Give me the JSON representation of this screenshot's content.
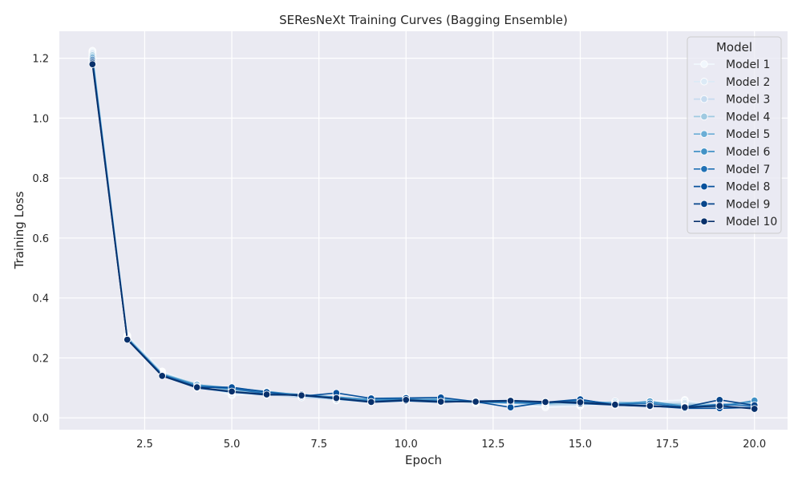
{
  "chart_data": {
    "type": "line",
    "title": "SEResNeXt Training Curves (Bagging Ensemble)",
    "xlabel": "Epoch",
    "ylabel": "Training Loss",
    "xlim": [
      0.05,
      20.95
    ],
    "ylim": [
      -0.0395,
      1.29
    ],
    "xticks": [
      2.5,
      5.0,
      7.5,
      10.0,
      12.5,
      15.0,
      17.5,
      20.0
    ],
    "xtick_labels": [
      "2.5",
      "5.0",
      "7.5",
      "10.0",
      "12.5",
      "15.0",
      "17.5",
      "20.0"
    ],
    "yticks": [
      0.0,
      0.2,
      0.4,
      0.6,
      0.8,
      1.0,
      1.2
    ],
    "ytick_labels": [
      "0.0",
      "0.2",
      "0.4",
      "0.6",
      "0.8",
      "1.0",
      "1.2"
    ],
    "grid": true,
    "legend": {
      "title": "Model",
      "position": "top-right"
    },
    "x": [
      1,
      2,
      3,
      4,
      5,
      6,
      7,
      8,
      9,
      10,
      11,
      12,
      13,
      14,
      15,
      16,
      17,
      18,
      19,
      20
    ],
    "series": [
      {
        "name": "Model 1",
        "color": "#f1f7fd",
        "values": [
          1.225,
          0.275,
          0.155,
          0.11,
          0.075,
          0.08,
          0.07,
          0.06,
          0.055,
          0.06,
          0.065,
          0.05,
          0.045,
          0.035,
          0.04,
          0.05,
          0.055,
          0.06,
          0.035,
          0.03
        ]
      },
      {
        "name": "Model 2",
        "color": "#dceaf6",
        "values": [
          1.22,
          0.272,
          0.152,
          0.108,
          0.08,
          0.085,
          0.072,
          0.058,
          0.06,
          0.065,
          0.062,
          0.048,
          0.05,
          0.04,
          0.042,
          0.052,
          0.05,
          0.055,
          0.038,
          0.033
        ]
      },
      {
        "name": "Model 3",
        "color": "#c6dbef",
        "values": [
          1.215,
          0.27,
          0.15,
          0.105,
          0.085,
          0.078,
          0.068,
          0.062,
          0.065,
          0.068,
          0.058,
          0.052,
          0.048,
          0.042,
          0.045,
          0.055,
          0.045,
          0.05,
          0.04,
          0.048
        ]
      },
      {
        "name": "Model 4",
        "color": "#a0cae1",
        "values": [
          1.21,
          0.268,
          0.148,
          0.112,
          0.09,
          0.082,
          0.075,
          0.065,
          0.058,
          0.062,
          0.06,
          0.05,
          0.052,
          0.045,
          0.05,
          0.048,
          0.05,
          0.045,
          0.045,
          0.05
        ]
      },
      {
        "name": "Model 5",
        "color": "#6baed6",
        "values": [
          1.205,
          0.266,
          0.146,
          0.108,
          0.095,
          0.085,
          0.078,
          0.068,
          0.062,
          0.058,
          0.064,
          0.055,
          0.055,
          0.05,
          0.055,
          0.05,
          0.052,
          0.04,
          0.042,
          0.055
        ]
      },
      {
        "name": "Model 6",
        "color": "#4292c6",
        "values": [
          1.2,
          0.265,
          0.145,
          0.11,
          0.1,
          0.088,
          0.076,
          0.07,
          0.06,
          0.063,
          0.059,
          0.053,
          0.05,
          0.048,
          0.058,
          0.046,
          0.055,
          0.038,
          0.038,
          0.058
        ]
      },
      {
        "name": "Model 7",
        "color": "#2171b5",
        "values": [
          1.195,
          0.264,
          0.144,
          0.105,
          0.098,
          0.08,
          0.074,
          0.064,
          0.056,
          0.06,
          0.056,
          0.055,
          0.052,
          0.05,
          0.06,
          0.045,
          0.048,
          0.035,
          0.045,
          0.04
        ]
      },
      {
        "name": "Model 8",
        "color": "#08519c",
        "values": [
          1.19,
          0.263,
          0.142,
          0.102,
          0.102,
          0.086,
          0.072,
          0.083,
          0.065,
          0.066,
          0.068,
          0.054,
          0.035,
          0.052,
          0.062,
          0.042,
          0.04,
          0.032,
          0.032,
          0.035
        ]
      },
      {
        "name": "Model 9",
        "color": "#08468b",
        "values": [
          1.185,
          0.262,
          0.14,
          0.1,
          0.086,
          0.076,
          0.078,
          0.063,
          0.052,
          0.057,
          0.052,
          0.056,
          0.058,
          0.054,
          0.048,
          0.043,
          0.038,
          0.036,
          0.06,
          0.042
        ]
      },
      {
        "name": "Model 10",
        "color": "#08306b",
        "values": [
          1.18,
          0.261,
          0.14,
          0.102,
          0.088,
          0.078,
          0.075,
          0.066,
          0.053,
          0.06,
          0.054,
          0.054,
          0.057,
          0.053,
          0.052,
          0.044,
          0.04,
          0.035,
          0.04,
          0.03
        ]
      }
    ]
  }
}
